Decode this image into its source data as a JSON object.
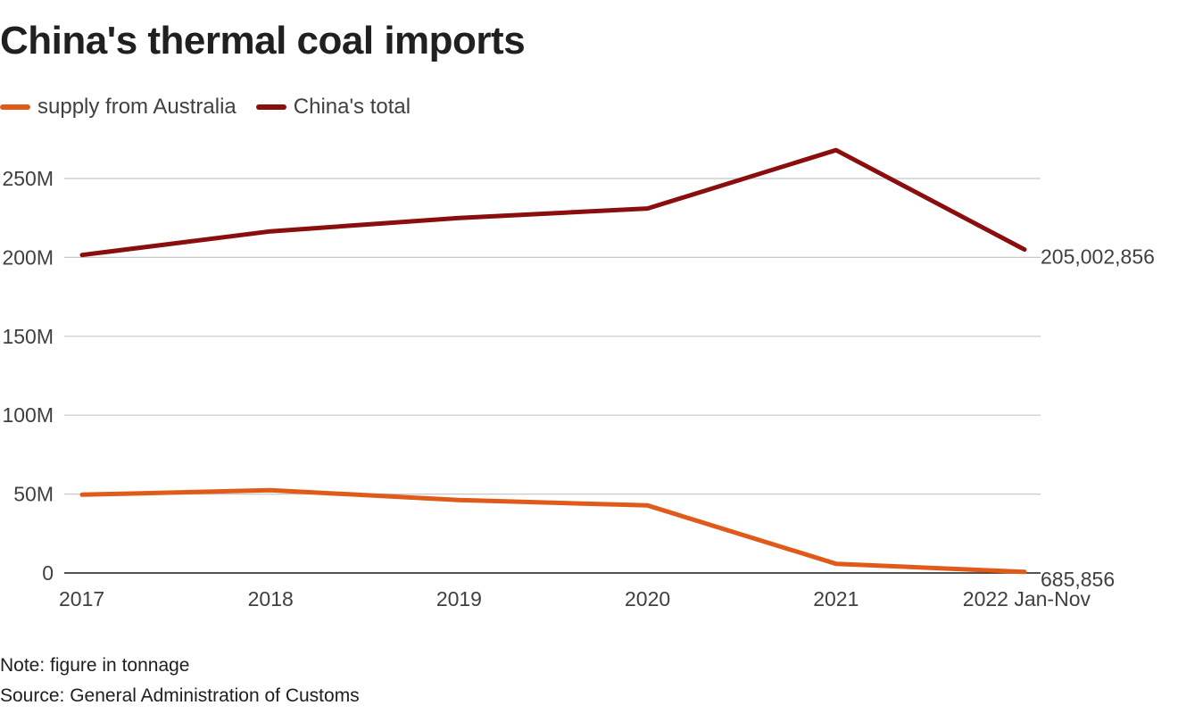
{
  "title": "China's thermal coal imports",
  "legend": [
    {
      "label": "supply from Australia",
      "color": "#e05a1a"
    },
    {
      "label": "China's total",
      "color": "#8b0e0e"
    }
  ],
  "note": "Note: figure in tonnage",
  "source": "Source: General Administration of Customs",
  "chart_data": {
    "type": "line",
    "title": "China's thermal coal imports",
    "x": [
      "2017",
      "2018",
      "2019",
      "2020",
      "2021",
      "2022 Jan-Nov"
    ],
    "series": [
      {
        "name": "supply from Australia",
        "color": "#e05a1a",
        "values": [
          49600000,
          52500000,
          46200000,
          42800000,
          5800000,
          685856
        ],
        "end_label": "685,856"
      },
      {
        "name": "China's total",
        "color": "#8b0e0e",
        "values": [
          201500000,
          216500000,
          225000000,
          231000000,
          268000000,
          205002856
        ],
        "end_label": "205,002,856"
      }
    ],
    "y_ticks": [
      0,
      50000000,
      100000000,
      150000000,
      200000000,
      250000000
    ],
    "y_tick_labels": [
      "0",
      "50M",
      "100M",
      "150M",
      "200M",
      "250M"
    ],
    "ylim": [
      0,
      250000000
    ],
    "grid": true,
    "legend_position": "top-left"
  }
}
